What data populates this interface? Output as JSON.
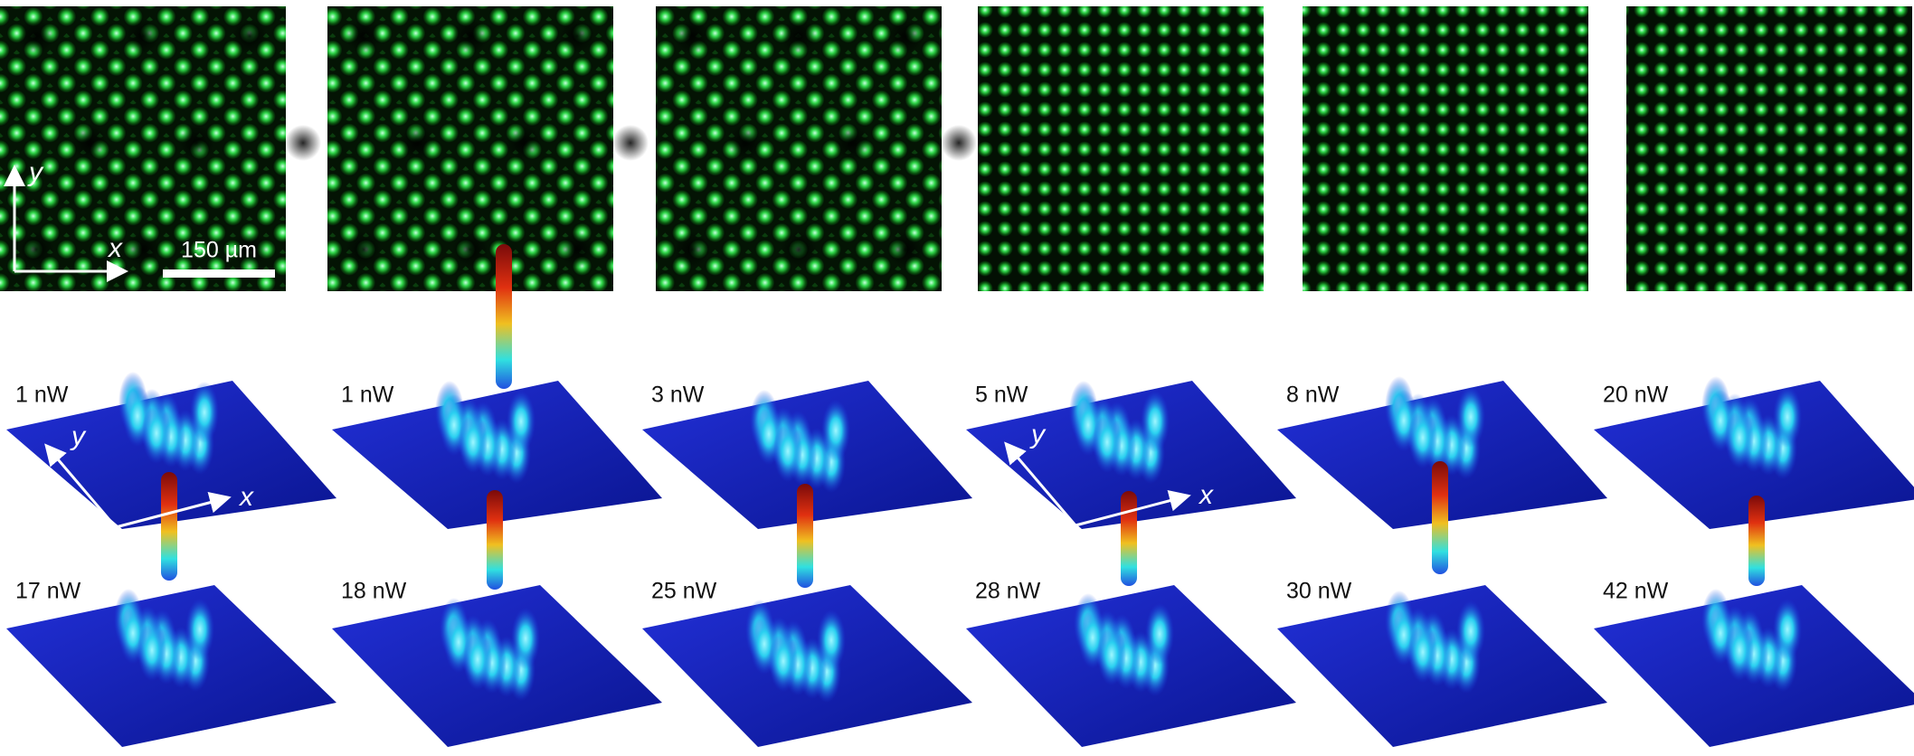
{
  "scale_bar": "150 µm",
  "image_axes": {
    "x": "x",
    "y": "y"
  },
  "plot_axes": {
    "x": "x",
    "y": "y"
  },
  "row1": {
    "labels": [
      "1 nW",
      "1 nW",
      "3 nW",
      "5 nW",
      "8 nW",
      "20 nW"
    ]
  },
  "row2": {
    "labels": [
      "17 nW",
      "18 nW",
      "25 nW",
      "28 nW",
      "30 nW",
      "42 nW"
    ]
  }
}
